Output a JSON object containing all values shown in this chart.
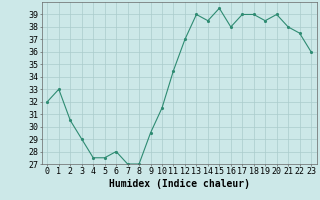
{
  "x": [
    0,
    1,
    2,
    3,
    4,
    5,
    6,
    7,
    8,
    9,
    10,
    11,
    12,
    13,
    14,
    15,
    16,
    17,
    18,
    19,
    20,
    21,
    22,
    23
  ],
  "y": [
    32,
    33,
    30.5,
    29,
    27.5,
    27.5,
    28,
    27,
    27,
    29.5,
    31.5,
    34.5,
    37,
    39,
    38.5,
    39.5,
    38,
    39,
    39,
    38.5,
    39,
    38,
    37.5,
    36
  ],
  "line_color": "#2e8b72",
  "marker_color": "#2e8b72",
  "bg_color": "#cce8e8",
  "grid_color": "#aacccc",
  "xlabel": "Humidex (Indice chaleur)",
  "ylim": [
    27,
    40
  ],
  "xlim": [
    -0.5,
    23.5
  ],
  "yticks": [
    27,
    28,
    29,
    30,
    31,
    32,
    33,
    34,
    35,
    36,
    37,
    38,
    39
  ],
  "xticks": [
    0,
    1,
    2,
    3,
    4,
    5,
    6,
    7,
    8,
    9,
    10,
    11,
    12,
    13,
    14,
    15,
    16,
    17,
    18,
    19,
    20,
    21,
    22,
    23
  ],
  "xtick_labels": [
    "0",
    "1",
    "2",
    "3",
    "4",
    "5",
    "6",
    "7",
    "8",
    "9",
    "10",
    "11",
    "12",
    "13",
    "14",
    "15",
    "16",
    "17",
    "18",
    "19",
    "20",
    "21",
    "22",
    "23"
  ],
  "xlabel_fontsize": 7,
  "tick_fontsize": 6,
  "fig_width": 3.2,
  "fig_height": 2.0
}
